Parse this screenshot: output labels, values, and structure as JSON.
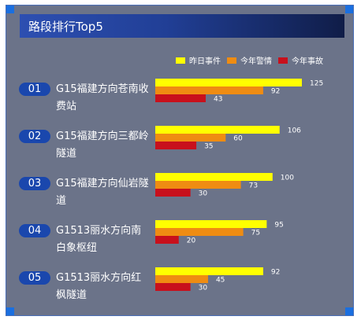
{
  "header": {
    "title": "路段排行Top5"
  },
  "colors": {
    "series_yesterday": "#ffff00",
    "series_year_alerts": "#ef8c12",
    "series_year_accidents": "#c8101c"
  },
  "chart_data": {
    "type": "bar",
    "orientation": "horizontal",
    "title": "路段排行Top5",
    "legend_position": "top-right",
    "categories": [
      "G15福建方向苍南收费站",
      "G15福建方向三都岭隧道",
      "G15福建方向仙岩隧道",
      "G1513丽水方向南白象枢纽",
      "G1513丽水方向红枫隧道"
    ],
    "ranks": [
      "01",
      "02",
      "03",
      "04",
      "05"
    ],
    "series": [
      {
        "name": "昨日事件",
        "values": [
          125,
          106,
          100,
          95,
          92
        ]
      },
      {
        "name": "今年警情",
        "values": [
          92,
          60,
          73,
          75,
          45
        ]
      },
      {
        "name": "今年事故",
        "values": [
          43,
          35,
          30,
          20,
          30
        ]
      }
    ],
    "xlim": [
      0,
      125
    ],
    "grid": false
  }
}
